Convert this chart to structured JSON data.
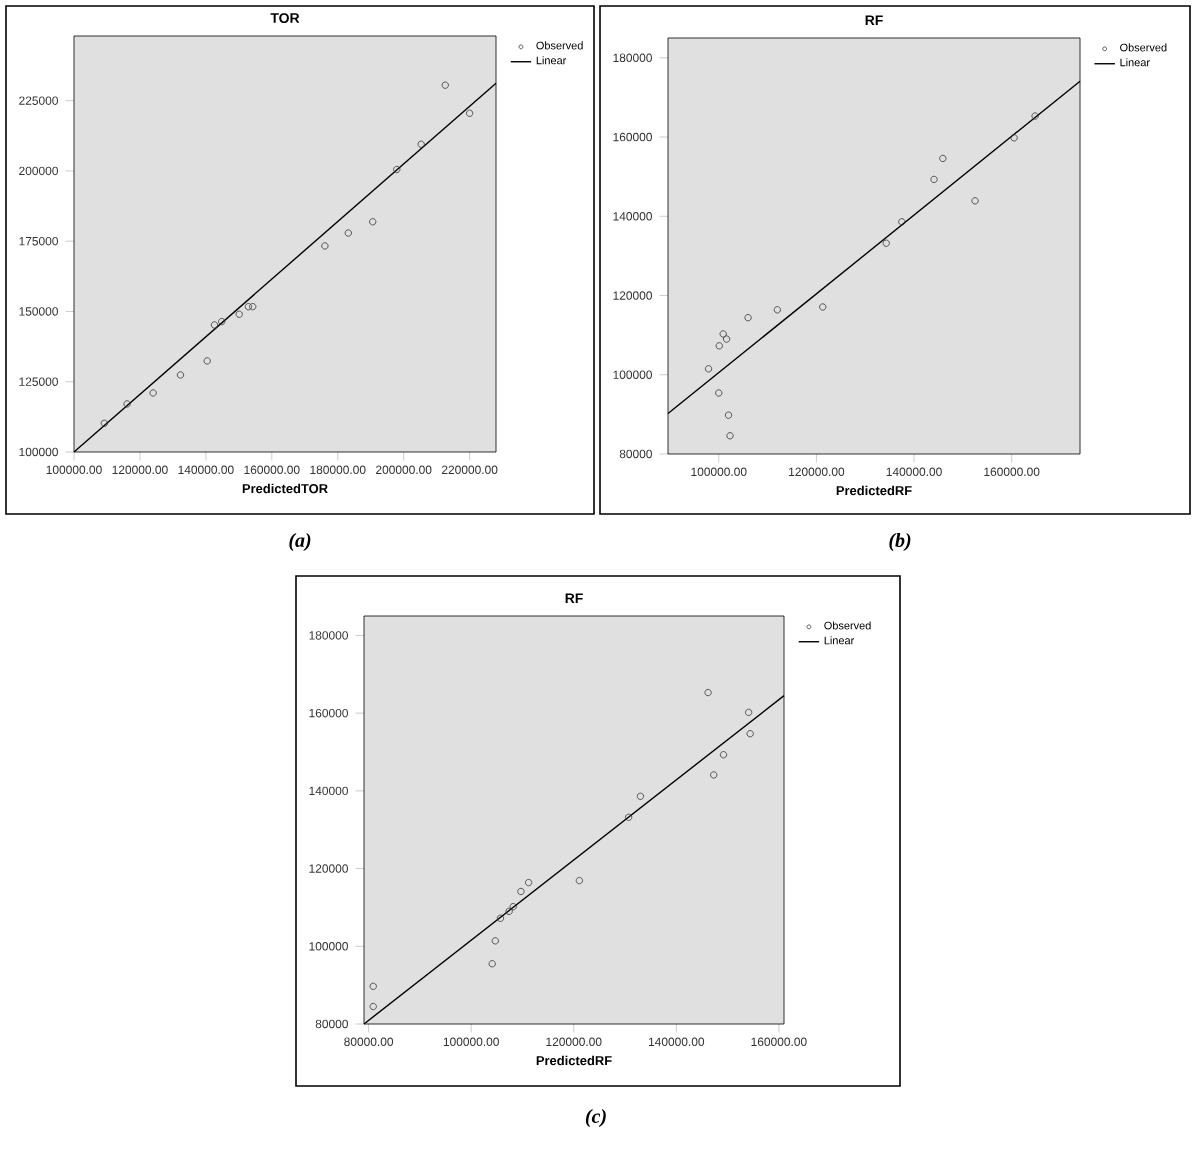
{
  "chart_data": [
    {
      "type": "scatter",
      "title": "TOR",
      "xlabel": "PredictedTOR",
      "annotations": [
        "(a)"
      ],
      "legend": "top right",
      "xlim": [
        100000,
        228000
      ],
      "ylim": [
        100000,
        248000
      ],
      "xticks": [
        {
          "value": 100000,
          "label": "100000.00"
        },
        {
          "value": 120000,
          "label": "120000.00"
        },
        {
          "value": 140000,
          "label": "140000.00"
        },
        {
          "value": 160000,
          "label": "160000.00"
        },
        {
          "value": 180000,
          "label": "180000.00"
        },
        {
          "value": 200000,
          "label": "200000.00"
        },
        {
          "value": 220000,
          "label": "220000.00"
        }
      ],
      "yticks": [
        100000,
        125000,
        150000,
        175000,
        200000,
        225000
      ],
      "series": [
        {
          "name": "Observed",
          "marker": "circle",
          "color": "#333333",
          "x": [
            109200,
            116100,
            124000,
            132300,
            140400,
            142600,
            144800,
            150100,
            152900,
            154200,
            176100,
            183200,
            190600,
            197900,
            205300,
            212600,
            220000
          ],
          "values": [
            110200,
            117100,
            121000,
            127400,
            132400,
            145200,
            146400,
            149000,
            151700,
            151700,
            173300,
            177900,
            181900,
            200500,
            209500,
            230500,
            220500
          ]
        },
        {
          "name": "Linear",
          "type": "line",
          "marker": "none",
          "color": "#000000",
          "x": [
            100000,
            228000
          ],
          "values": [
            100000,
            231200
          ]
        }
      ]
    },
    {
      "type": "scatter",
      "title": "RF",
      "xlabel": "PredictedRF",
      "annotations": [
        "(b)"
      ],
      "legend": "top right",
      "xlim": [
        89600,
        174000
      ],
      "ylim": [
        80000,
        185000
      ],
      "xticks": [
        {
          "value": 100000,
          "label": "100000.00"
        },
        {
          "value": 120000,
          "label": "120000.00"
        },
        {
          "value": 140000,
          "label": "140000.00"
        },
        {
          "value": 160000,
          "label": "160000.00"
        }
      ],
      "yticks": [
        80000,
        100000,
        120000,
        140000,
        160000,
        180000
      ],
      "series": [
        {
          "name": "Observed",
          "marker": "circle",
          "color": "#333333",
          "x": [
            97900,
            100000,
            100100,
            100900,
            101600,
            102000,
            102300,
            106000,
            112000,
            121300,
            134300,
            137500,
            144100,
            145900,
            152500,
            160500,
            164800
          ],
          "values": [
            101500,
            95400,
            107300,
            110300,
            109000,
            89800,
            84600,
            114400,
            116400,
            117100,
            133200,
            138600,
            149300,
            154600,
            143900,
            159800,
            165300
          ]
        },
        {
          "name": "Linear",
          "type": "line",
          "marker": "none",
          "color": "#000000",
          "x": [
            89600,
            174000
          ],
          "values": [
            90200,
            174100
          ]
        }
      ]
    },
    {
      "type": "scatter",
      "title": "RF",
      "xlabel": "PredictedRF",
      "annotations": [
        "(c)"
      ],
      "legend": "top right",
      "xlim": [
        79100,
        161000
      ],
      "ylim": [
        80000,
        185000
      ],
      "xticks": [
        {
          "value": 80000,
          "label": "80000.00"
        },
        {
          "value": 100000,
          "label": "100000.00"
        },
        {
          "value": 120000,
          "label": "120000.00"
        },
        {
          "value": 140000,
          "label": "140000.00"
        },
        {
          "value": 160000,
          "label": "160000.00"
        }
      ],
      "yticks": [
        80000,
        100000,
        120000,
        140000,
        160000,
        180000
      ],
      "series": [
        {
          "name": "Observed",
          "marker": "circle",
          "color": "#333333",
          "x": [
            80900,
            80900,
            104100,
            104700,
            105700,
            107400,
            108200,
            109700,
            111200,
            121100,
            130700,
            133000,
            146200,
            147300,
            149200,
            154100,
            154400
          ],
          "values": [
            89700,
            84500,
            95500,
            101400,
            107200,
            109000,
            110200,
            114100,
            116400,
            116900,
            133200,
            138600,
            165300,
            144100,
            149300,
            160200,
            154700
          ]
        },
        {
          "name": "Linear",
          "type": "line",
          "marker": "none",
          "color": "#000000",
          "x": [
            79100,
            161000
          ],
          "values": [
            80000,
            164500
          ]
        }
      ]
    }
  ]
}
